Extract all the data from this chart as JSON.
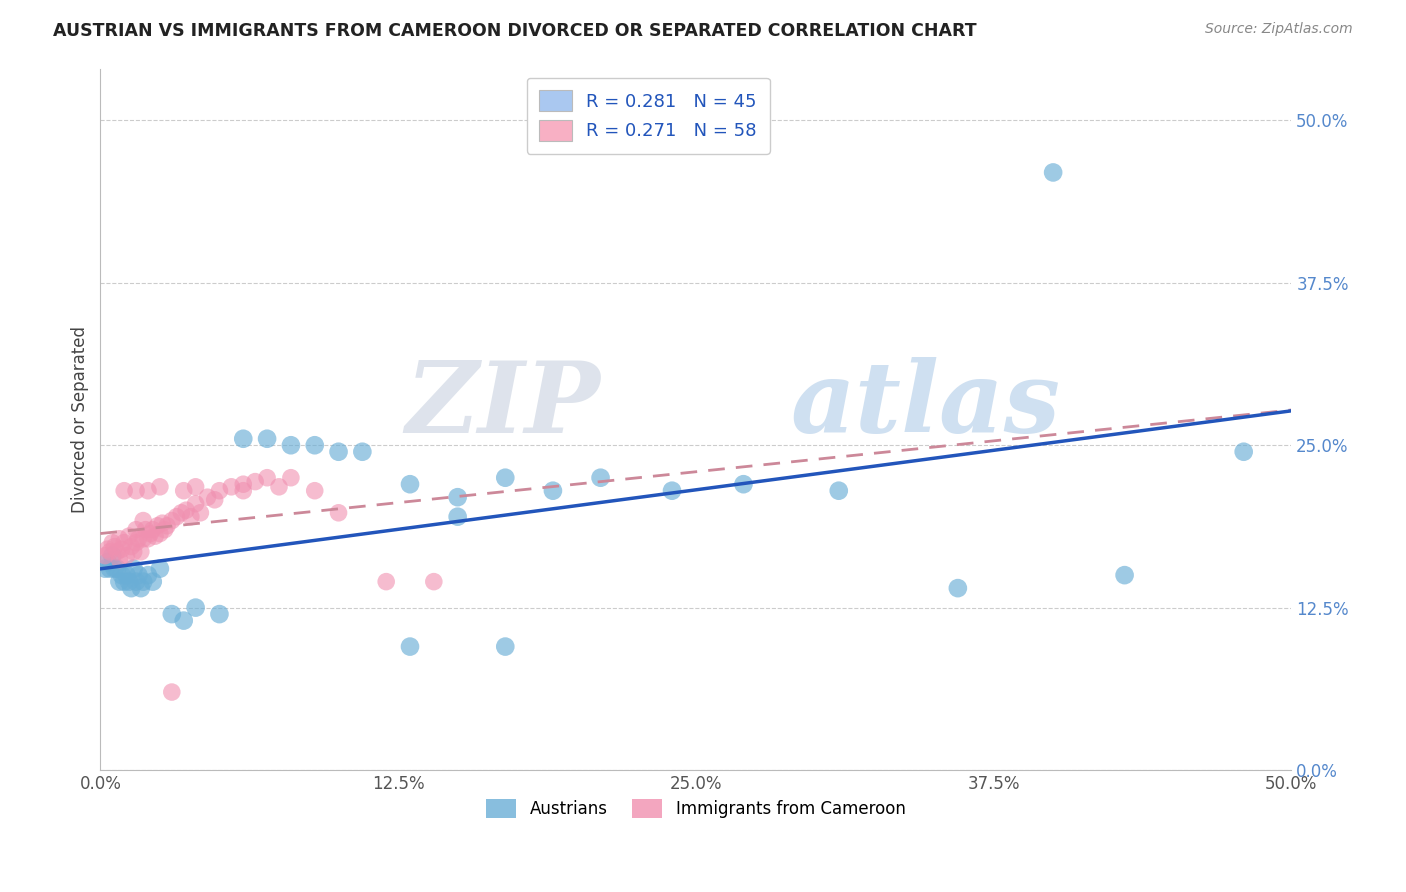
{
  "title": "AUSTRIAN VS IMMIGRANTS FROM CAMEROON DIVORCED OR SEPARATED CORRELATION CHART",
  "source": "Source: ZipAtlas.com",
  "ylabel": "Divorced or Separated",
  "xlim": [
    0.0,
    0.5
  ],
  "ylim": [
    0.0,
    0.54
  ],
  "legend_entries": [
    {
      "label": "R = 0.281   N = 45",
      "color": "#aac8f0"
    },
    {
      "label": "R = 0.271   N = 58",
      "color": "#f8b0c4"
    }
  ],
  "legend_labels_bottom": [
    "Austrians",
    "Immigrants from Cameroon"
  ],
  "austrians_color": "#6aaed6",
  "cameroon_color": "#f090b0",
  "trendline_austrians_color": "#2255bb",
  "trendline_cameroon_color": "#cc8899",
  "watermark_zip": "ZIP",
  "watermark_atlas": "atlas",
  "austrians_x": [
    0.002,
    0.003,
    0.004,
    0.005,
    0.006,
    0.007,
    0.008,
    0.009,
    0.01,
    0.011,
    0.012,
    0.013,
    0.014,
    0.015,
    0.016,
    0.017,
    0.018,
    0.02,
    0.022,
    0.025,
    0.03,
    0.035,
    0.04,
    0.05,
    0.06,
    0.07,
    0.08,
    0.09,
    0.1,
    0.11,
    0.13,
    0.15,
    0.17,
    0.19,
    0.21,
    0.24,
    0.27,
    0.31,
    0.36,
    0.4,
    0.13,
    0.15,
    0.17,
    0.43,
    0.48
  ],
  "austrians_y": [
    0.155,
    0.16,
    0.155,
    0.165,
    0.155,
    0.155,
    0.145,
    0.15,
    0.145,
    0.15,
    0.145,
    0.14,
    0.155,
    0.145,
    0.15,
    0.14,
    0.145,
    0.15,
    0.145,
    0.155,
    0.12,
    0.115,
    0.125,
    0.12,
    0.255,
    0.255,
    0.25,
    0.25,
    0.245,
    0.245,
    0.095,
    0.21,
    0.095,
    0.215,
    0.225,
    0.215,
    0.22,
    0.215,
    0.14,
    0.46,
    0.22,
    0.195,
    0.225,
    0.15,
    0.245
  ],
  "cameroon_x": [
    0.002,
    0.003,
    0.004,
    0.005,
    0.006,
    0.007,
    0.008,
    0.008,
    0.009,
    0.01,
    0.011,
    0.012,
    0.013,
    0.014,
    0.015,
    0.015,
    0.016,
    0.017,
    0.018,
    0.018,
    0.019,
    0.02,
    0.021,
    0.022,
    0.023,
    0.024,
    0.025,
    0.026,
    0.027,
    0.028,
    0.03,
    0.032,
    0.034,
    0.036,
    0.038,
    0.04,
    0.042,
    0.045,
    0.048,
    0.05,
    0.055,
    0.06,
    0.065,
    0.07,
    0.075,
    0.08,
    0.09,
    0.1,
    0.12,
    0.14,
    0.01,
    0.015,
    0.02,
    0.025,
    0.03,
    0.035,
    0.04,
    0.06
  ],
  "cameroon_y": [
    0.165,
    0.17,
    0.168,
    0.175,
    0.172,
    0.168,
    0.178,
    0.162,
    0.17,
    0.175,
    0.165,
    0.18,
    0.172,
    0.168,
    0.185,
    0.175,
    0.178,
    0.168,
    0.192,
    0.178,
    0.185,
    0.178,
    0.182,
    0.185,
    0.18,
    0.188,
    0.182,
    0.19,
    0.185,
    0.188,
    0.192,
    0.195,
    0.198,
    0.2,
    0.195,
    0.205,
    0.198,
    0.21,
    0.208,
    0.215,
    0.218,
    0.22,
    0.222,
    0.225,
    0.218,
    0.225,
    0.215,
    0.198,
    0.145,
    0.145,
    0.215,
    0.215,
    0.215,
    0.218,
    0.06,
    0.215,
    0.218,
    0.215
  ]
}
